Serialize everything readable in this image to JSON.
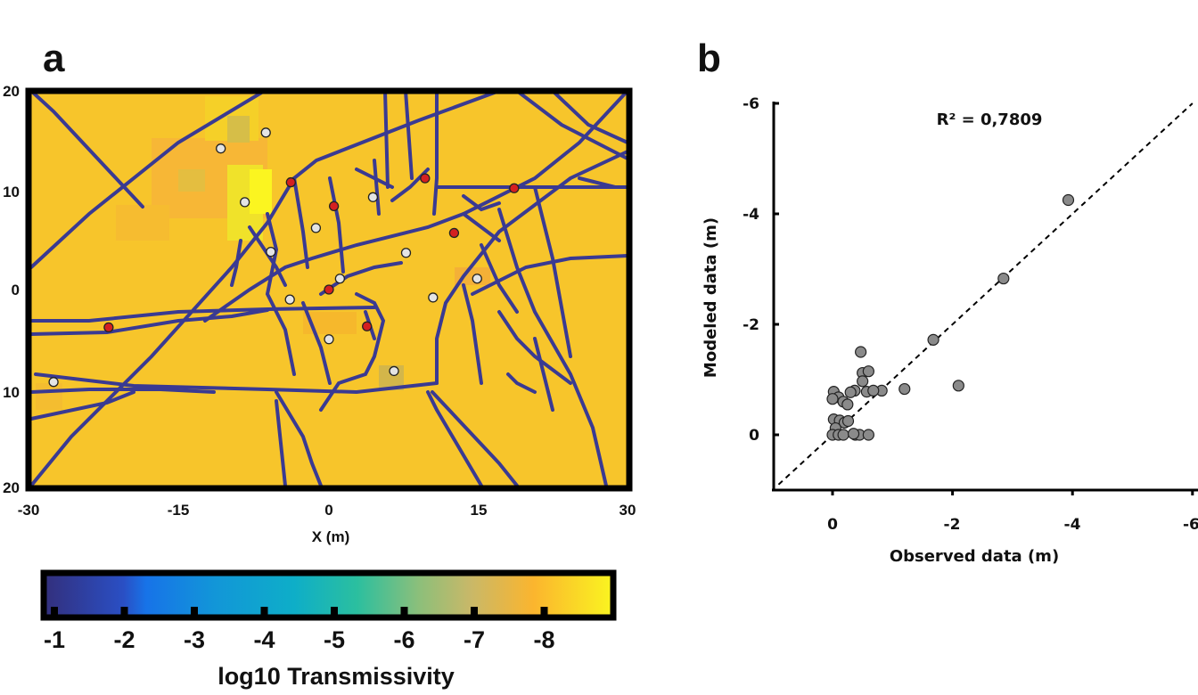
{
  "panel_a": {
    "letter": "a",
    "xlabel": "X (m)",
    "x_ticks": [
      "-30",
      "-15",
      "0",
      "15",
      "30"
    ],
    "y_ticks": [
      "20",
      "10",
      "0",
      "10",
      "20"
    ],
    "colorbar_label": "log10 Transmissivity",
    "colorbar_ticks": [
      "-1",
      "-2",
      "-3",
      "-4",
      "-5",
      "-6",
      "-7",
      "-8"
    ]
  },
  "panel_b": {
    "letter": "b",
    "xlabel": "Observed data (m)",
    "ylabel": "Modeled data (m)",
    "x_ticks": [
      "0",
      "-2",
      "-4",
      "-6"
    ],
    "y_ticks": [
      "-6",
      "-4",
      "-2",
      "0"
    ],
    "r2_label": "R² = 0,7809"
  },
  "colors": {
    "field": "#f7c52b",
    "fracture": "#3a3a92",
    "red_point": "#d42020",
    "white_point": "#e4e4e4",
    "gray_point": "#8a8a8a"
  },
  "chart_data": [
    {
      "type": "heatmap",
      "description_of_content": "transmissivity map with fracture network and observation points",
      "xlabel": "X (m)",
      "xlim": [
        -30,
        30
      ],
      "ylim": [
        -20,
        20
      ],
      "colorbar_range": [
        -1,
        -9
      ],
      "red_points": [
        {
          "x": -22,
          "y": -3.8
        },
        {
          "x": -3.8,
          "y": 10.8
        },
        {
          "x": 0.5,
          "y": 8.4
        },
        {
          "x": 9.6,
          "y": 11.2
        },
        {
          "x": 18.5,
          "y": 10.2
        },
        {
          "x": 12.5,
          "y": 5.7
        },
        {
          "x": 0,
          "y": 0
        },
        {
          "x": 3.8,
          "y": -3.7
        }
      ],
      "white_points": [
        {
          "x": -10.8,
          "y": 14.2
        },
        {
          "x": -6.3,
          "y": 15.8
        },
        {
          "x": -8.4,
          "y": 8.8
        },
        {
          "x": -1.3,
          "y": 6.2
        },
        {
          "x": 4.4,
          "y": 9.3
        },
        {
          "x": -5.8,
          "y": 3.8
        },
        {
          "x": 7.7,
          "y": 3.7
        },
        {
          "x": 1.1,
          "y": 1.1
        },
        {
          "x": 14.8,
          "y": 1.1
        },
        {
          "x": -3.9,
          "y": -1
        },
        {
          "x": 10.4,
          "y": -0.8
        },
        {
          "x": 0,
          "y": -5
        },
        {
          "x": 6.5,
          "y": -8.2
        },
        {
          "x": -27.5,
          "y": -9.3
        }
      ]
    },
    {
      "type": "scatter",
      "xlabel": "Observed data (m)",
      "ylabel": "Modeled data (m)",
      "xlim": [
        0.9,
        -6
      ],
      "ylim": [
        0.9,
        -6
      ],
      "annotation": "R² = 0,7809",
      "points": [
        {
          "x": -3.93,
          "y": -4.25
        },
        {
          "x": -2.85,
          "y": -2.83
        },
        {
          "x": -1.68,
          "y": -1.72
        },
        {
          "x": -2.1,
          "y": -0.89
        },
        {
          "x": -1.2,
          "y": -0.83
        },
        {
          "x": -0.82,
          "y": -0.8
        },
        {
          "x": -0.47,
          "y": -1.5
        },
        {
          "x": -0.5,
          "y": -1.12
        },
        {
          "x": -0.6,
          "y": -1.15
        },
        {
          "x": -0.5,
          "y": -0.97
        },
        {
          "x": -0.57,
          "y": -0.78
        },
        {
          "x": -0.68,
          "y": -0.8
        },
        {
          "x": -0.37,
          "y": -0.8
        },
        {
          "x": -0.3,
          "y": -0.77
        },
        {
          "x": -0.02,
          "y": -0.78
        },
        {
          "x": -0.1,
          "y": -0.68
        },
        {
          "x": 0,
          "y": -0.65
        },
        {
          "x": -0.18,
          "y": -0.6
        },
        {
          "x": -0.25,
          "y": -0.55
        },
        {
          "x": -0.02,
          "y": -0.28
        },
        {
          "x": -0.12,
          "y": -0.26
        },
        {
          "x": -0.2,
          "y": -0.22
        },
        {
          "x": -0.26,
          "y": -0.25
        },
        {
          "x": -0.05,
          "y": -0.12
        },
        {
          "x": 0,
          "y": 0
        },
        {
          "x": -0.1,
          "y": 0
        },
        {
          "x": -0.18,
          "y": 0
        },
        {
          "x": -0.38,
          "y": 0
        },
        {
          "x": -0.45,
          "y": 0
        },
        {
          "x": -0.6,
          "y": 0
        },
        {
          "x": -0.35,
          "y": -0.02
        }
      ],
      "reference_line": "1:1 dashed"
    }
  ]
}
